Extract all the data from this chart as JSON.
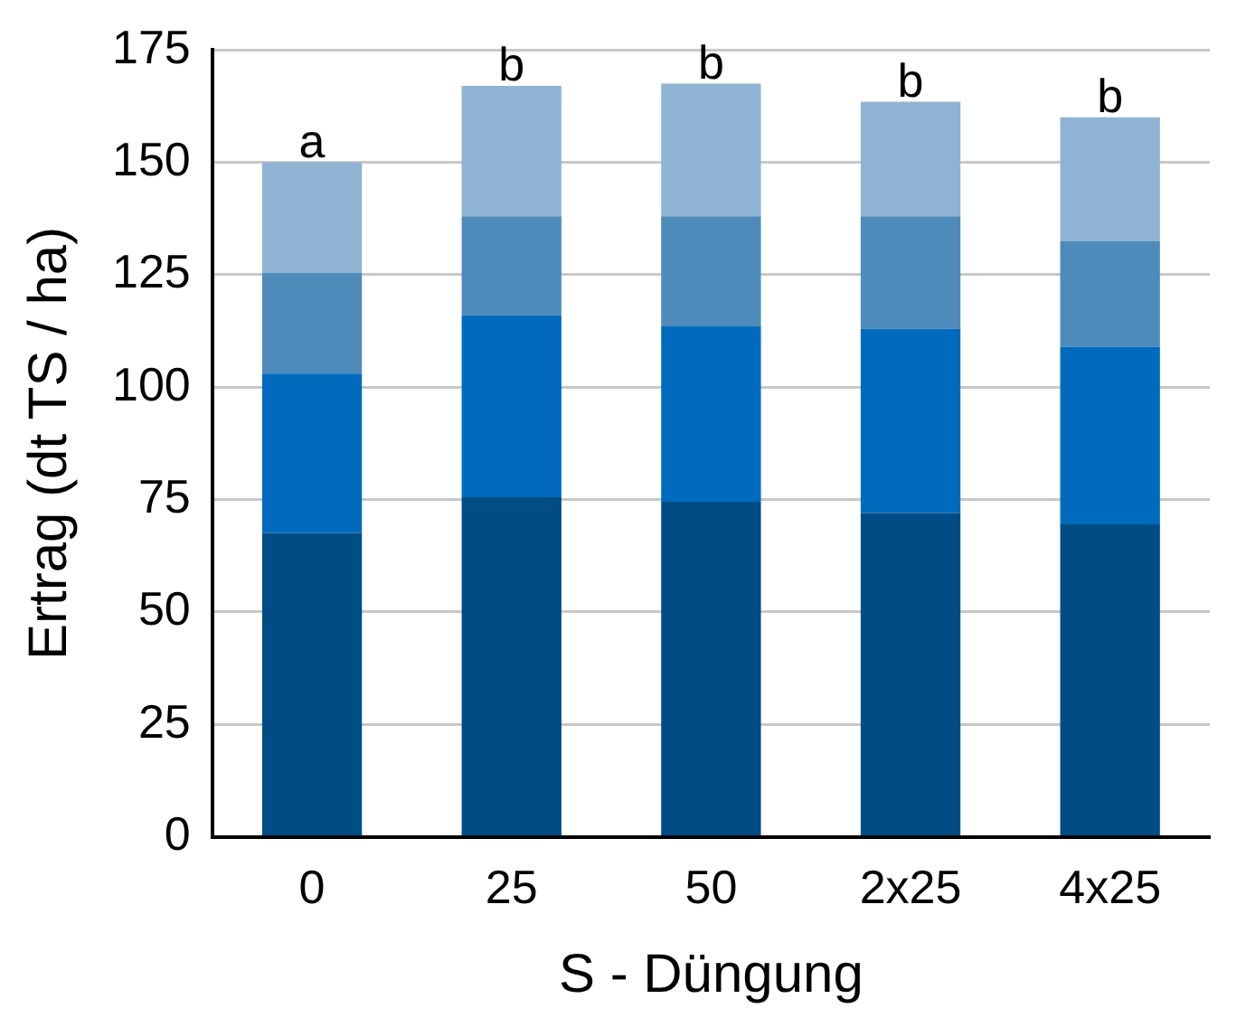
{
  "chart_data": {
    "type": "bar",
    "stacked": true,
    "xlabel": "S - Düngung",
    "ylabel": "Ertrag (dt TS / ha)",
    "categories": [
      "0",
      "25",
      "50",
      "2x25",
      "4x25"
    ],
    "series": [
      {
        "color": "#004c85",
        "values": [
          67.5,
          75.5,
          74.5,
          72,
          69.5
        ]
      },
      {
        "color": "#006bbd",
        "values": [
          35.5,
          40.5,
          39,
          41,
          39.5
        ]
      },
      {
        "color": "#4f8bba",
        "values": [
          22.5,
          22,
          24.5,
          25,
          23.5
        ]
      },
      {
        "color": "#8fb4d3",
        "values": [
          24.5,
          29,
          29.5,
          25.5,
          27.5
        ]
      }
    ],
    "ylim": [
      0,
      175
    ],
    "yticks": [
      0,
      25,
      50,
      75,
      100,
      125,
      150,
      175
    ],
    "grid": "y",
    "legend": false,
    "annotations": [
      {
        "text": "a",
        "x": "0",
        "y": 150
      },
      {
        "text": "b",
        "x": "25",
        "y": 167
      },
      {
        "text": "b",
        "x": "50",
        "y": 167.5
      },
      {
        "text": "b",
        "x": "2x25",
        "y": 163.5
      },
      {
        "text": "b",
        "x": "4x25",
        "y": 160
      }
    ]
  }
}
